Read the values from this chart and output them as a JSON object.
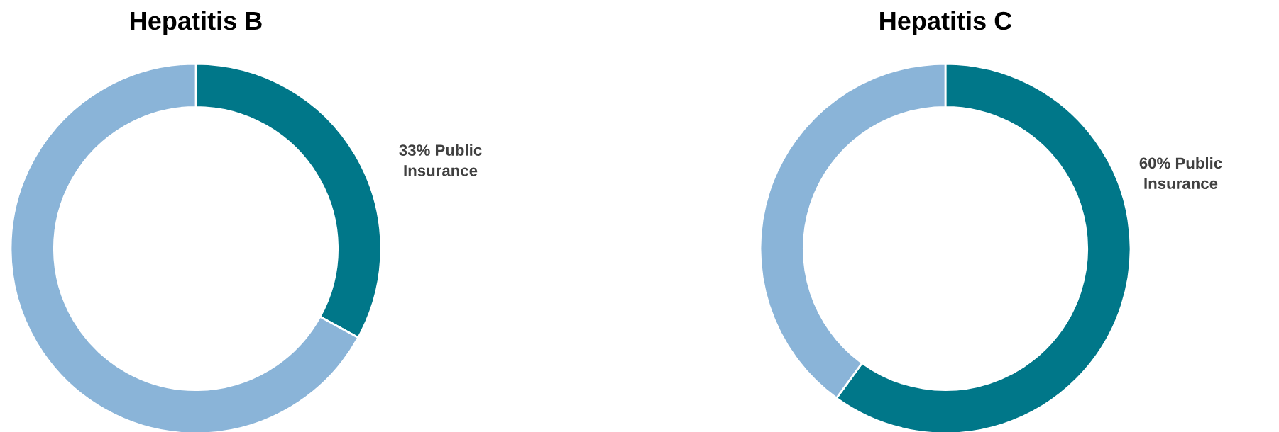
{
  "chart_data": [
    {
      "type": "donut",
      "title": "Hepatitis B",
      "categories": [
        null,
        null
      ],
      "values": [
        33,
        67
      ],
      "colors": [
        "#007789",
        "#8ab4d8"
      ],
      "value_labels": [
        "33% Public\nInsurance",
        null
      ]
    },
    {
      "type": "donut",
      "title": "Hepatitis C",
      "categories": [
        null,
        null
      ],
      "values": [
        60,
        40
      ],
      "colors": [
        "#007789",
        "#8ab4d8"
      ],
      "value_labels": [
        "60% Public\nInsurance",
        null
      ]
    }
  ]
}
